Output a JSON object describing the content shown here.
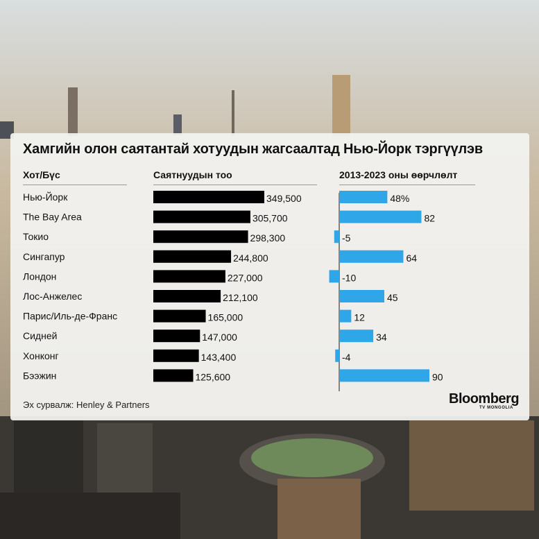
{
  "title": "Хамгийн олон саятантай хотуудын жагсаалтад Нью-Йорк тэргүүлэв",
  "headers": {
    "city": "Хот/Бүс",
    "millionaires": "Саятнуудын тоо",
    "change": "2013-2023 оны өөрчлөлт"
  },
  "source": "Эх сурвалж: Henley & Partners",
  "logo": {
    "main": "Bloomberg",
    "sub": "TV MONGOLIA"
  },
  "colors": {
    "millionaires_bar": "#000000",
    "change_bar": "#2ea6e8"
  },
  "chart_data": {
    "type": "bar",
    "categories": [
      "Нью-Йорк",
      "The Bay Area",
      "Токио",
      "Сингапур",
      "Лондон",
      "Лос-Анжелес",
      "Парис/Иль-де-Франс",
      "Сидней",
      "Хонконг",
      "Бээжин"
    ],
    "series": [
      {
        "name": "Саятнуудын тоо",
        "values": [
          349500,
          305700,
          298300,
          244800,
          227000,
          212100,
          165000,
          147000,
          143400,
          125600
        ],
        "labels": [
          "349,500",
          "305,700",
          "298,300",
          "244,800",
          "227,000",
          "212,100",
          "165,000",
          "147,000",
          "143,400",
          "125,600"
        ]
      },
      {
        "name": "2013-2023 оны өөрчлөлт",
        "values": [
          48,
          82,
          -5,
          64,
          -10,
          45,
          12,
          34,
          -4,
          90
        ],
        "labels": [
          "48%",
          "82",
          "-5",
          "64",
          "-10",
          "45",
          "12",
          "34",
          "-4",
          "90"
        ]
      }
    ]
  }
}
